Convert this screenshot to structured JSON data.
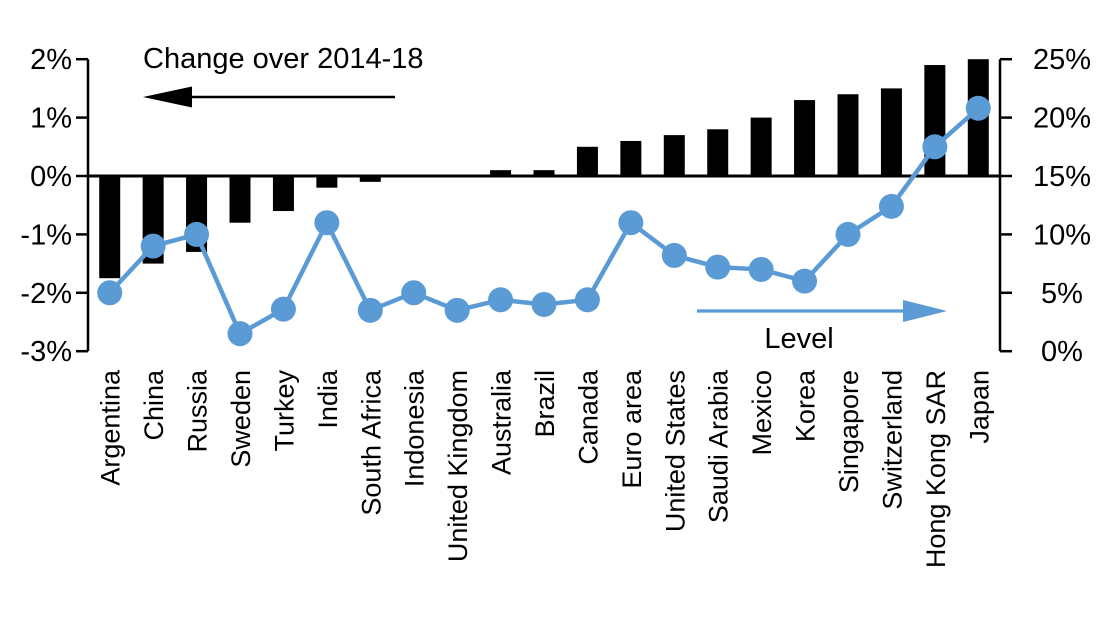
{
  "chart_data": {
    "type": "bar",
    "subtype": "dual-axis bar + line",
    "categories": [
      "Argentina",
      "China",
      "Russia",
      "Sweden",
      "Turkey",
      "India",
      "South Africa",
      "Indonesia",
      "United Kingdom",
      "Australia",
      "Brazil",
      "Canada",
      "Euro area",
      "United States",
      "Saudi Arabia",
      "Mexico",
      "Korea",
      "Singapore",
      "Switzerland",
      "Hong Kong SAR",
      "Japan"
    ],
    "series": [
      {
        "name": "Change over 2014-18",
        "type": "bar",
        "axis": "left",
        "color": "#000000",
        "values": [
          -1.75,
          -1.5,
          -1.3,
          -0.8,
          -0.6,
          -0.2,
          -0.1,
          0.0,
          0.0,
          0.1,
          0.1,
          0.5,
          0.6,
          0.7,
          0.8,
          1.0,
          1.3,
          1.4,
          1.5,
          1.9,
          2.0
        ]
      },
      {
        "name": "Level",
        "type": "line",
        "axis": "right",
        "color": "#5B9BD5",
        "values": [
          5.0,
          9.0,
          10.0,
          1.5,
          3.6,
          11.0,
          3.5,
          5.0,
          3.5,
          4.4,
          4.0,
          4.4,
          11.0,
          8.2,
          7.2,
          7.0,
          6.0,
          10.0,
          12.4,
          17.5,
          20.8
        ]
      }
    ],
    "left_axis": {
      "tick_labels": [
        "2%",
        "1%",
        "0%",
        "-1%",
        "-2%",
        "-3%"
      ],
      "tick_values": [
        2,
        1,
        0,
        -1,
        -2,
        -3
      ],
      "min": -3,
      "max": 2
    },
    "right_axis": {
      "tick_labels": [
        "25%",
        "20%",
        "15%",
        "10%",
        "5%",
        "0%"
      ],
      "tick_values": [
        25,
        20,
        15,
        10,
        5,
        0
      ],
      "min": 0,
      "max": 25
    },
    "legend_arrows": {
      "bar_arrow_direction": "left",
      "line_arrow_direction": "right"
    },
    "grid": "off"
  }
}
